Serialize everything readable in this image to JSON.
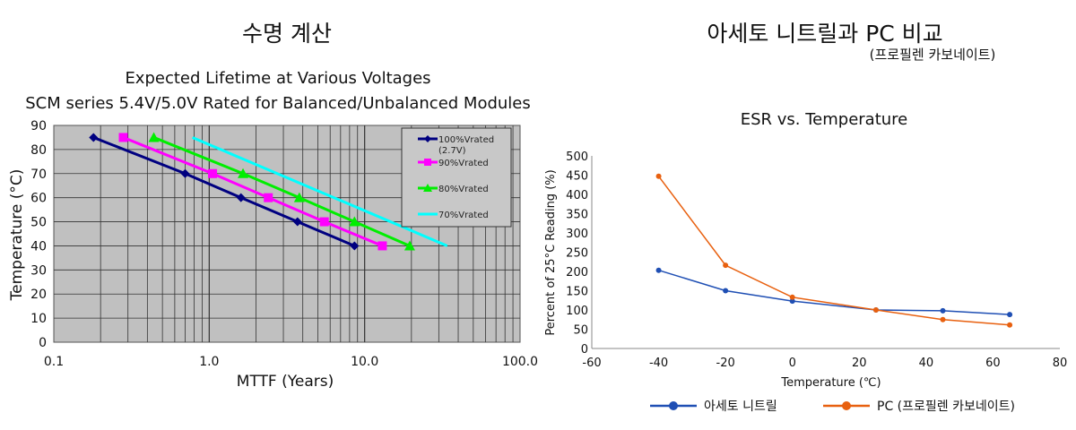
{
  "left_panel": {
    "heading": "수명 계산"
  },
  "right_panel": {
    "heading": "아세토 니트릴과 PC 비교",
    "subheading": "(프로필렌 카보네이트)"
  },
  "chart_data": [
    {
      "type": "line",
      "title": "Expected Lifetime at Various Voltages",
      "subtitle": "SCM series 5.4V/5.0V Rated for Balanced/Unbalanced Modules",
      "xlabel": "MTTF (Years)",
      "ylabel": "Temperature (°C)",
      "xscale": "log",
      "xlim": [
        0.1,
        100
      ],
      "ylim": [
        0,
        90
      ],
      "xticks": [
        "0.1",
        "1.0",
        "10.0",
        "100.0"
      ],
      "yticks": [
        "0",
        "10",
        "20",
        "30",
        "40",
        "50",
        "60",
        "70",
        "80",
        "90"
      ],
      "grid": true,
      "background": "#c0c0c0",
      "legend_position": "top-right",
      "series": [
        {
          "name": "100%Vrated",
          "name_line2": "(2.7V)",
          "color": "#000080",
          "marker": "diamond",
          "points": [
            [
              0.18,
              85
            ],
            [
              0.7,
              70
            ],
            [
              1.6,
              60
            ],
            [
              3.7,
              50
            ],
            [
              8.6,
              40
            ]
          ]
        },
        {
          "name": "90%Vrated",
          "color": "#ff00ff",
          "marker": "square",
          "points": [
            [
              0.28,
              85
            ],
            [
              1.05,
              70
            ],
            [
              2.4,
              60
            ],
            [
              5.5,
              50
            ],
            [
              13,
              40
            ]
          ]
        },
        {
          "name": "80%Vrated",
          "color": "#00ee00",
          "marker": "triangle",
          "points": [
            [
              0.44,
              85
            ],
            [
              1.65,
              70
            ],
            [
              3.8,
              60
            ],
            [
              8.6,
              50
            ],
            [
              19.5,
              40
            ]
          ]
        },
        {
          "name": "70%Vrated",
          "color": "#00ffff",
          "marker": "none",
          "points": [
            [
              0.78,
              85
            ],
            [
              34,
              40
            ]
          ]
        }
      ]
    },
    {
      "type": "line",
      "title": "ESR vs. Temperature",
      "xlabel": "Temperature (℃)",
      "ylabel": "Percent of 25°C Reading (%)",
      "xlim": [
        -60,
        80
      ],
      "ylim": [
        0,
        500
      ],
      "xticks": [
        "-60",
        "-40",
        "-20",
        "0",
        "20",
        "40",
        "60",
        "80"
      ],
      "yticks": [
        "0",
        "50",
        "100",
        "150",
        "200",
        "250",
        "300",
        "350",
        "400",
        "450",
        "500"
      ],
      "grid": false,
      "legend_position": "bottom",
      "series": [
        {
          "name": "아세토 니트릴",
          "color": "#1f4fb4",
          "points": [
            [
              -40,
              203
            ],
            [
              -20,
              150
            ],
            [
              0,
              123
            ],
            [
              25,
              100
            ],
            [
              45,
              98
            ],
            [
              65,
              88
            ]
          ]
        },
        {
          "name": "PC (프로필렌 카보네이트)",
          "color": "#e8600f",
          "points": [
            [
              -40,
              447
            ],
            [
              -20,
              216
            ],
            [
              0,
              133
            ],
            [
              25,
              100
            ],
            [
              45,
              75
            ],
            [
              65,
              61
            ]
          ]
        }
      ]
    }
  ]
}
